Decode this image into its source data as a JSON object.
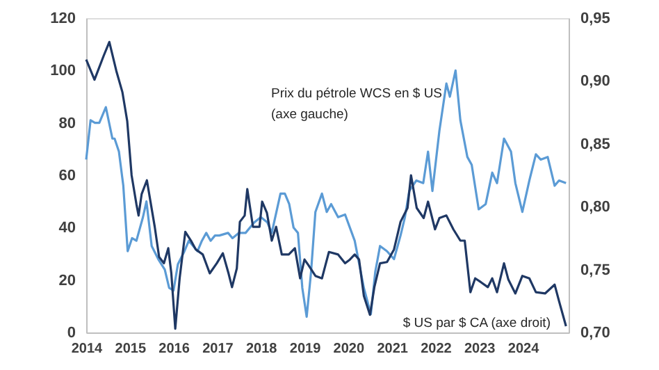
{
  "chart_data": {
    "type": "line",
    "xlim": [
      2014,
      2025.05
    ],
    "xticks": [
      2014,
      2015,
      2016,
      2017,
      2018,
      2019,
      2020,
      2021,
      2022,
      2023,
      2024
    ],
    "ylim": [
      0,
      120
    ],
    "yticks": [
      0,
      20,
      40,
      60,
      80,
      100,
      120
    ],
    "y2lim": [
      0.7,
      0.95
    ],
    "y2ticks": [
      {
        "value": 0.7,
        "label": "0,70"
      },
      {
        "value": 0.75,
        "label": "0,75"
      },
      {
        "value": 0.8,
        "label": "0,80"
      },
      {
        "value": 0.85,
        "label": "0,85"
      },
      {
        "value": 0.9,
        "label": "0,90"
      },
      {
        "value": 0.95,
        "label": "0,95"
      }
    ],
    "grid": false,
    "marker": "none",
    "line_style": "solid",
    "series": [
      {
        "name": "Prix du pétrole WCS en $ US\n(axe gauche)",
        "color": "#5b9bd5",
        "axis": "y",
        "x": [
          2014.0,
          2014.1,
          2014.2,
          2014.3,
          2014.45,
          2014.6,
          2014.65,
          2014.75,
          2014.85,
          2014.95,
          2015.05,
          2015.15,
          2015.3,
          2015.38,
          2015.5,
          2015.65,
          2015.8,
          2015.9,
          2016.0,
          2016.1,
          2016.25,
          2016.35,
          2016.55,
          2016.65,
          2016.75,
          2016.85,
          2016.95,
          2017.05,
          2017.25,
          2017.35,
          2017.5,
          2017.65,
          2017.85,
          2018.0,
          2018.15,
          2018.25,
          2018.45,
          2018.55,
          2018.65,
          2018.75,
          2018.85,
          2018.95,
          2019.05,
          2019.15,
          2019.25,
          2019.4,
          2019.51,
          2019.61,
          2019.77,
          2019.93,
          2020.04,
          2020.15,
          2020.36,
          2020.52,
          2020.62,
          2020.73,
          2020.89,
          2021.05,
          2021.2,
          2021.3,
          2021.4,
          2021.56,
          2021.72,
          2021.83,
          2021.93,
          2022.09,
          2022.25,
          2022.33,
          2022.46,
          2022.57,
          2022.73,
          2022.83,
          2022.99,
          2023.15,
          2023.3,
          2023.41,
          2023.57,
          2023.73,
          2023.83,
          2023.99,
          2024.15,
          2024.3,
          2024.41,
          2024.57,
          2024.73,
          2024.83,
          2024.99
        ],
        "values": [
          66,
          81,
          80,
          80,
          86,
          74,
          74,
          69,
          56,
          31,
          36,
          35,
          44,
          50,
          33,
          28,
          24,
          17,
          16,
          26,
          31,
          35,
          31,
          35,
          38,
          35,
          37,
          37,
          38,
          36,
          38,
          38,
          42,
          44,
          42,
          38,
          53,
          53,
          49,
          40,
          38,
          17,
          6,
          23,
          46,
          53,
          46,
          49,
          44,
          45,
          40,
          35,
          17,
          7,
          23,
          33,
          31,
          28,
          37,
          44,
          54,
          58,
          57,
          69,
          54,
          77,
          95,
          90,
          100,
          81,
          67,
          64,
          47,
          49,
          61,
          57,
          74,
          69,
          57,
          46,
          58,
          68,
          66,
          67,
          56,
          58,
          57
        ]
      },
      {
        "name": "$ US par $ CA (axe droit)",
        "color": "#1f3864",
        "axis": "y2",
        "x": [
          2014.0,
          2014.19,
          2014.4,
          2014.53,
          2014.69,
          2014.83,
          2014.94,
          2015.04,
          2015.15,
          2015.2,
          2015.27,
          2015.39,
          2015.57,
          2015.67,
          2015.78,
          2015.88,
          2015.95,
          2016.04,
          2016.14,
          2016.27,
          2016.4,
          2016.51,
          2016.67,
          2016.83,
          2016.99,
          2017.13,
          2017.26,
          2017.34,
          2017.45,
          2017.52,
          2017.63,
          2017.69,
          2017.82,
          2017.97,
          2018.03,
          2018.14,
          2018.25,
          2018.35,
          2018.48,
          2018.64,
          2018.78,
          2018.9,
          2019.0,
          2019.1,
          2019.25,
          2019.4,
          2019.46,
          2019.56,
          2019.77,
          2019.93,
          2020.04,
          2020.15,
          2020.25,
          2020.36,
          2020.5,
          2020.6,
          2020.73,
          2020.89,
          2021.05,
          2021.2,
          2021.36,
          2021.44,
          2021.57,
          2021.73,
          2021.83,
          2021.99,
          2022.09,
          2022.25,
          2022.41,
          2022.57,
          2022.67,
          2022.8,
          2022.91,
          2023.04,
          2023.2,
          2023.3,
          2023.41,
          2023.57,
          2023.67,
          2023.83,
          2023.99,
          2024.15,
          2024.3,
          2024.51,
          2024.73,
          2024.83,
          2024.99
        ],
        "values": [
          0.917,
          0.901,
          0.92,
          0.931,
          0.908,
          0.891,
          0.868,
          0.825,
          0.802,
          0.793,
          0.81,
          0.821,
          0.784,
          0.76,
          0.755,
          0.767,
          0.747,
          0.703,
          0.743,
          0.78,
          0.773,
          0.766,
          0.762,
          0.747,
          0.755,
          0.763,
          0.747,
          0.736,
          0.751,
          0.788,
          0.793,
          0.814,
          0.784,
          0.784,
          0.804,
          0.795,
          0.773,
          0.784,
          0.762,
          0.762,
          0.767,
          0.743,
          0.758,
          0.753,
          0.745,
          0.743,
          0.751,
          0.764,
          0.762,
          0.755,
          0.758,
          0.762,
          0.758,
          0.729,
          0.714,
          0.736,
          0.755,
          0.756,
          0.766,
          0.788,
          0.799,
          0.825,
          0.799,
          0.791,
          0.804,
          0.782,
          0.791,
          0.793,
          0.782,
          0.773,
          0.773,
          0.732,
          0.743,
          0.74,
          0.736,
          0.743,
          0.732,
          0.755,
          0.742,
          0.731,
          0.745,
          0.743,
          0.732,
          0.731,
          0.738,
          0.725,
          0.705
        ]
      }
    ]
  }
}
